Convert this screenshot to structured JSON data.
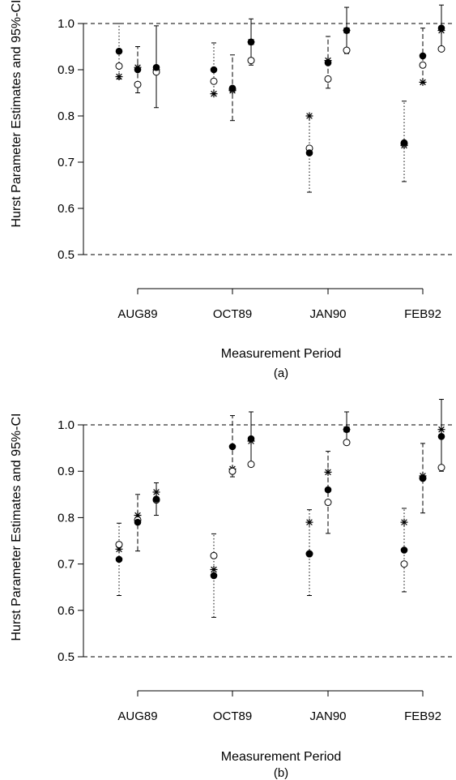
{
  "chart_data": [
    {
      "type": "scatter",
      "panel_label": "(a)",
      "xlabel": "Measurement Period",
      "ylabel": "Hurst Parameter Estimates and 95%-CI",
      "categories": [
        "AUG89",
        "OCT89",
        "JAN90",
        "FEB92"
      ],
      "ylim": [
        0.5,
        1.0
      ],
      "y_ticks": [
        "0.5",
        "0.6",
        "0.7",
        "0.8",
        "0.9",
        "1.0"
      ],
      "reference_lines": [
        0.5,
        1.0
      ],
      "groups": [
        {
          "category": "AUG89",
          "sub_index": 0,
          "ci": [
            0.88,
            1.0
          ],
          "ci_style": "dotted",
          "points": {
            "filled": 0.94,
            "open": 0.908,
            "star": 0.885
          }
        },
        {
          "category": "AUG89",
          "sub_index": 1,
          "ci": [
            0.85,
            0.95
          ],
          "ci_style": "dashed",
          "points": {
            "filled": 0.9,
            "open": 0.868,
            "star": 0.905
          }
        },
        {
          "category": "AUG89",
          "sub_index": 2,
          "ci": [
            0.818,
            0.995
          ],
          "ci_style": "solid",
          "points": {
            "filled": 0.905,
            "open": 0.895,
            "star": 0.9
          }
        },
        {
          "category": "OCT89",
          "sub_index": 0,
          "ci": [
            0.848,
            0.958
          ],
          "ci_style": "dotted",
          "points": {
            "filled": 0.9,
            "open": 0.875,
            "star": 0.848
          }
        },
        {
          "category": "OCT89",
          "sub_index": 1,
          "ci": [
            0.79,
            0.932
          ],
          "ci_style": "dashed",
          "points": {
            "filled": 0.86,
            "open": 0.858,
            "star": 0.855
          }
        },
        {
          "category": "OCT89",
          "sub_index": 2,
          "ci": [
            0.91,
            1.01
          ],
          "ci_style": "solid",
          "points": {
            "filled": 0.96,
            "open": 0.92,
            "star": 0.96
          }
        },
        {
          "category": "JAN90",
          "sub_index": 0,
          "ci": [
            0.635,
            0.8
          ],
          "ci_style": "dotted",
          "points": {
            "filled": 0.72,
            "open": 0.73,
            "star": 0.8
          }
        },
        {
          "category": "JAN90",
          "sub_index": 1,
          "ci": [
            0.86,
            0.972
          ],
          "ci_style": "dashed",
          "points": {
            "filled": 0.915,
            "open": 0.88,
            "star": 0.92
          }
        },
        {
          "category": "JAN90",
          "sub_index": 2,
          "ci": [
            0.935,
            1.035
          ],
          "ci_style": "solid",
          "points": {
            "filled": 0.985,
            "open": 0.942,
            "star": 0.985
          }
        },
        {
          "category": "FEB92",
          "sub_index": 0,
          "ci": [
            0.658,
            0.832
          ],
          "ci_style": "dotted",
          "points": {
            "filled": 0.742,
            "open": 0.74,
            "star": 0.736
          }
        },
        {
          "category": "FEB92",
          "sub_index": 1,
          "ci": [
            0.872,
            0.99
          ],
          "ci_style": "dashed",
          "points": {
            "filled": 0.93,
            "open": 0.91,
            "star": 0.873
          }
        },
        {
          "category": "FEB92",
          "sub_index": 2,
          "ci": [
            0.945,
            1.04
          ],
          "ci_style": "solid",
          "points": {
            "filled": 0.99,
            "open": 0.945,
            "star": 0.985
          }
        }
      ]
    },
    {
      "type": "scatter",
      "panel_label": "(b)",
      "xlabel": "Measurement Period",
      "ylabel": "Hurst Parameter Estimates and 95%-CI",
      "categories": [
        "AUG89",
        "OCT89",
        "JAN90",
        "FEB92"
      ],
      "ylim": [
        0.5,
        1.0
      ],
      "y_ticks": [
        "0.5",
        "0.6",
        "0.7",
        "0.8",
        "0.9",
        "1.0"
      ],
      "reference_lines": [
        0.5,
        1.0
      ],
      "groups": [
        {
          "category": "AUG89",
          "sub_index": 0,
          "ci": [
            0.632,
            0.788
          ],
          "ci_style": "dotted",
          "points": {
            "filled": 0.71,
            "open": 0.742,
            "star": 0.732
          }
        },
        {
          "category": "AUG89",
          "sub_index": 1,
          "ci": [
            0.728,
            0.85
          ],
          "ci_style": "dashed",
          "points": {
            "filled": 0.79,
            "open": 0.795,
            "star": 0.805
          }
        },
        {
          "category": "AUG89",
          "sub_index": 2,
          "ci": [
            0.805,
            0.875
          ],
          "ci_style": "solid",
          "points": {
            "filled": 0.84,
            "open": 0.838,
            "star": 0.855
          }
        },
        {
          "category": "OCT89",
          "sub_index": 0,
          "ci": [
            0.585,
            0.765
          ],
          "ci_style": "dotted",
          "points": {
            "filled": 0.675,
            "open": 0.718,
            "star": 0.688
          }
        },
        {
          "category": "OCT89",
          "sub_index": 1,
          "ci": [
            0.888,
            1.02
          ],
          "ci_style": "dashed",
          "points": {
            "filled": 0.953,
            "open": 0.9,
            "star": 0.905
          }
        },
        {
          "category": "OCT89",
          "sub_index": 2,
          "ci": [
            0.912,
            1.028
          ],
          "ci_style": "solid",
          "points": {
            "filled": 0.97,
            "open": 0.915,
            "star": 0.965
          }
        },
        {
          "category": "JAN90",
          "sub_index": 0,
          "ci": [
            0.632,
            0.817
          ],
          "ci_style": "dotted",
          "points": {
            "filled": 0.722,
            "open": 0.722,
            "star": 0.79
          }
        },
        {
          "category": "JAN90",
          "sub_index": 1,
          "ci": [
            0.766,
            0.943
          ],
          "ci_style": "dashed",
          "points": {
            "filled": 0.86,
            "open": 0.833,
            "star": 0.898
          }
        },
        {
          "category": "JAN90",
          "sub_index": 2,
          "ci": [
            0.957,
            1.028
          ],
          "ci_style": "solid",
          "points": {
            "filled": 0.99,
            "open": 0.962,
            "star": 0.99
          }
        },
        {
          "category": "FEB92",
          "sub_index": 0,
          "ci": [
            0.64,
            0.82
          ],
          "ci_style": "dotted",
          "points": {
            "filled": 0.73,
            "open": 0.7,
            "star": 0.79
          }
        },
        {
          "category": "FEB92",
          "sub_index": 1,
          "ci": [
            0.81,
            0.96
          ],
          "ci_style": "dashed",
          "points": {
            "filled": 0.885,
            "open": 0.885,
            "star": 0.89
          }
        },
        {
          "category": "FEB92",
          "sub_index": 2,
          "ci": [
            0.9,
            1.055
          ],
          "ci_style": "solid",
          "points": {
            "filled": 0.975,
            "open": 0.908,
            "star": 0.99
          }
        }
      ]
    }
  ]
}
